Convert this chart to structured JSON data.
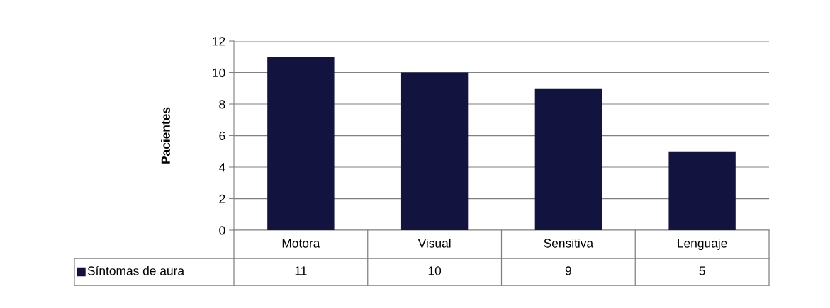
{
  "chart_data": {
    "type": "bar",
    "ylabel": "Pacientes",
    "categories": [
      "Motora",
      "Visual",
      "Sensitiva",
      "Lenguaje"
    ],
    "series": [
      {
        "name": "Síntomas de aura",
        "color": "#13133f",
        "values": [
          11,
          10,
          9,
          5
        ]
      }
    ],
    "ylim": [
      0,
      12
    ],
    "yticks": [
      0,
      2,
      4,
      6,
      8,
      10,
      12
    ],
    "grid": "y",
    "data_labels": true,
    "legend": "bottom left"
  }
}
